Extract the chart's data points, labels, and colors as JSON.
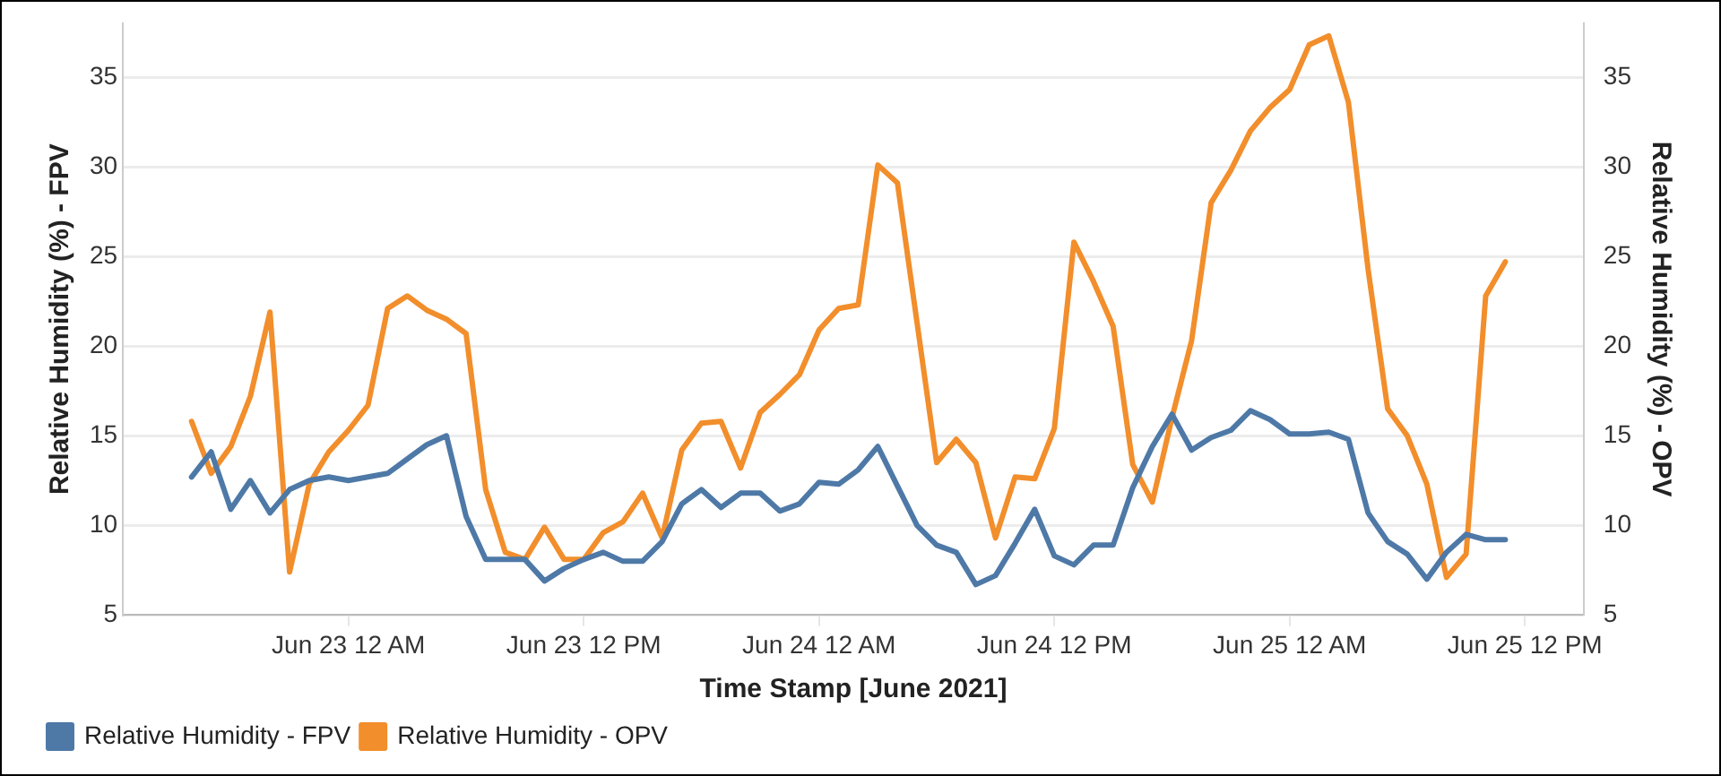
{
  "chart_data": {
    "type": "line",
    "xlabel": "Time Stamp [June 2021]",
    "ylabel": "Relative Humidity (%) - FPV",
    "y2label": "Relative Humidity (%) - OPV",
    "x": [
      "2021-06-22T16:00",
      "2021-06-22T17:00",
      "2021-06-22T18:00",
      "2021-06-22T19:00",
      "2021-06-22T20:00",
      "2021-06-22T21:00",
      "2021-06-22T22:00",
      "2021-06-22T23:00",
      "2021-06-23T00:00",
      "2021-06-23T01:00",
      "2021-06-23T02:00",
      "2021-06-23T03:00",
      "2021-06-23T04:00",
      "2021-06-23T05:00",
      "2021-06-23T06:00",
      "2021-06-23T07:00",
      "2021-06-23T08:00",
      "2021-06-23T09:00",
      "2021-06-23T10:00",
      "2021-06-23T11:00",
      "2021-06-23T12:00",
      "2021-06-23T13:00",
      "2021-06-23T14:00",
      "2021-06-23T15:00",
      "2021-06-23T16:00",
      "2021-06-23T17:00",
      "2021-06-23T18:00",
      "2021-06-23T19:00",
      "2021-06-23T20:00",
      "2021-06-23T21:00",
      "2021-06-23T22:00",
      "2021-06-23T23:00",
      "2021-06-24T00:00",
      "2021-06-24T01:00",
      "2021-06-24T02:00",
      "2021-06-24T03:00",
      "2021-06-24T04:00",
      "2021-06-24T05:00",
      "2021-06-24T06:00",
      "2021-06-24T07:00",
      "2021-06-24T08:00",
      "2021-06-24T09:00",
      "2021-06-24T10:00",
      "2021-06-24T11:00",
      "2021-06-24T12:00",
      "2021-06-24T13:00",
      "2021-06-24T14:00",
      "2021-06-24T15:00",
      "2021-06-24T16:00",
      "2021-06-24T17:00",
      "2021-06-24T18:00",
      "2021-06-24T19:00",
      "2021-06-24T20:00",
      "2021-06-24T21:00",
      "2021-06-24T22:00",
      "2021-06-24T23:00",
      "2021-06-25T00:00",
      "2021-06-25T01:00",
      "2021-06-25T02:00",
      "2021-06-25T03:00",
      "2021-06-25T04:00",
      "2021-06-25T05:00",
      "2021-06-25T06:00",
      "2021-06-25T07:00",
      "2021-06-25T08:00",
      "2021-06-25T09:00",
      "2021-06-25T10:00",
      "2021-06-25T11:00"
    ],
    "series": [
      {
        "name": "Relative Humidity - FPV",
        "color": "#4e79a7",
        "values": [
          12.7,
          14.1,
          10.9,
          12.5,
          10.7,
          12.0,
          12.5,
          12.7,
          12.5,
          12.7,
          12.9,
          13.7,
          14.5,
          15.0,
          10.5,
          8.1,
          8.1,
          8.1,
          6.9,
          7.6,
          8.1,
          8.5,
          8.0,
          8.0,
          9.1,
          11.2,
          12.0,
          11.0,
          11.8,
          11.8,
          10.8,
          11.2,
          12.4,
          12.3,
          13.1,
          14.4,
          12.2,
          10.0,
          8.9,
          8.5,
          6.7,
          7.2,
          9.0,
          10.9,
          8.3,
          7.8,
          8.9,
          8.9,
          12.1,
          14.4,
          16.2,
          14.2,
          14.9,
          15.3,
          16.4,
          15.9,
          15.1,
          15.1,
          15.2,
          14.8,
          10.7,
          9.1,
          8.4,
          7.0,
          8.5,
          9.5,
          9.2,
          9.2
        ]
      },
      {
        "name": "Relative Humidity - OPV",
        "color": "#f28e2b",
        "axis": "y2",
        "values": [
          15.8,
          12.9,
          14.4,
          17.2,
          21.9,
          7.4,
          12.3,
          14.1,
          15.3,
          16.7,
          22.1,
          22.8,
          22.0,
          21.5,
          20.7,
          12.0,
          8.5,
          8.1,
          9.9,
          8.1,
          8.1,
          9.6,
          10.2,
          11.8,
          9.3,
          14.2,
          15.7,
          15.8,
          13.2,
          16.3,
          17.3,
          18.4,
          20.9,
          22.1,
          22.3,
          30.1,
          29.1,
          21.3,
          13.5,
          14.8,
          13.5,
          9.3,
          12.7,
          12.6,
          15.4,
          25.8,
          23.6,
          21.1,
          13.4,
          11.3,
          16.0,
          20.3,
          28.0,
          29.8,
          32.0,
          33.3,
          34.3,
          36.8,
          37.3,
          33.6,
          24.3,
          16.5,
          15.0,
          12.3,
          7.1,
          8.4,
          22.8,
          24.7
        ]
      }
    ],
    "xlim": [
      "2021-06-22T12:30",
      "2021-06-25T15:00"
    ],
    "xticks": [
      {
        "value": "2021-06-23T00:00",
        "label": "Jun 23 12 AM"
      },
      {
        "value": "2021-06-23T12:00",
        "label": "Jun 23 12 PM"
      },
      {
        "value": "2021-06-24T00:00",
        "label": "Jun 24 12 AM"
      },
      {
        "value": "2021-06-24T12:00",
        "label": "Jun 24 12 PM"
      },
      {
        "value": "2021-06-25T00:00",
        "label": "Jun 25 12 AM"
      },
      {
        "value": "2021-06-25T12:00",
        "label": "Jun 25 12 PM"
      }
    ],
    "ylim": [
      5,
      38
    ],
    "yticks": [
      5,
      10,
      15,
      20,
      25,
      30,
      35
    ],
    "y2lim": [
      5,
      38
    ],
    "y2ticks": [
      5,
      10,
      15,
      20,
      25,
      30,
      35
    ],
    "grid": "y",
    "legend": "bottom left",
    "marker": "none",
    "line_style": "solid"
  }
}
